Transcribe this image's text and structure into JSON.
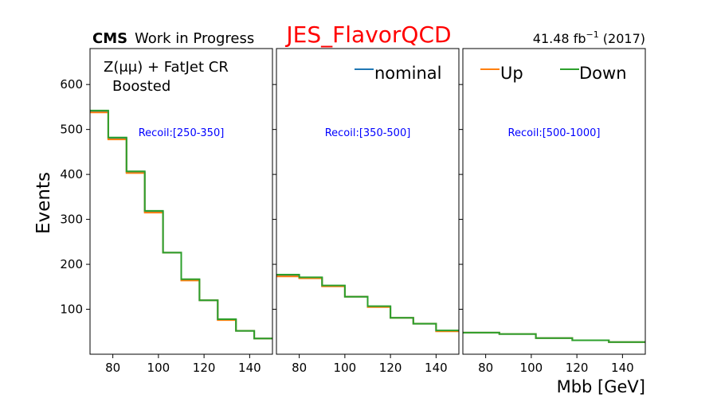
{
  "header": {
    "cms": "CMS",
    "work": "Work in Progress",
    "title": "JES_FlavorQCD",
    "lumi_value": "41.48 fb",
    "lumi_exp": "−1",
    "lumi_year": " (2017)"
  },
  "region": {
    "line1": "Z(μμ) + FatJet CR",
    "line2": "Boosted"
  },
  "colors": {
    "nominal": "#1f77b4",
    "up": "#ff7f0e",
    "down": "#2ca02c",
    "title": "#ff0000",
    "annotation": "#0000ff"
  },
  "chart_data": {
    "type": "line",
    "xlabel": "Mbb [GeV]",
    "ylabel": "Events",
    "ylim": [
      0,
      680
    ],
    "yticks": [
      100,
      200,
      300,
      400,
      500,
      600
    ],
    "series_names": [
      "nominal",
      "Up",
      "Down"
    ],
    "panels": [
      {
        "annotation": "Recoil:[250-350]",
        "xlim": [
          70,
          150
        ],
        "xticks": [
          80,
          100,
          120,
          140
        ],
        "edges": [
          70,
          78,
          86,
          94,
          102,
          110,
          118,
          126,
          134,
          142,
          150
        ],
        "nominal": [
          540,
          480,
          405,
          317,
          226,
          165,
          120,
          77,
          52,
          35
        ],
        "up": [
          538,
          478,
          403,
          315,
          226,
          164,
          120,
          76,
          52,
          35
        ],
        "down": [
          542,
          482,
          407,
          319,
          226,
          167,
          120,
          78,
          52,
          35
        ]
      },
      {
        "annotation": "Recoil:[350-500]",
        "xlim": [
          70,
          150
        ],
        "xticks": [
          80,
          100,
          120,
          140
        ],
        "edges": [
          70,
          80,
          90,
          100,
          110,
          120,
          130,
          140,
          150
        ],
        "nominal": [
          175,
          170,
          152,
          128,
          106,
          81,
          68,
          52
        ],
        "up": [
          173,
          169,
          151,
          128,
          105,
          81,
          68,
          51
        ],
        "down": [
          177,
          171,
          153,
          128,
          107,
          81,
          68,
          53
        ]
      },
      {
        "annotation": "Recoil:[500-1000]",
        "xlim": [
          70,
          150
        ],
        "xticks": [
          80,
          100,
          120,
          140
        ],
        "edges": [
          70,
          86,
          102,
          118,
          134,
          150
        ],
        "nominal": [
          48,
          45,
          36,
          31,
          27
        ],
        "up": [
          48,
          45,
          36,
          31,
          27
        ],
        "down": [
          48,
          45,
          36,
          31,
          27
        ]
      }
    ],
    "legend_placement": "top-right"
  }
}
